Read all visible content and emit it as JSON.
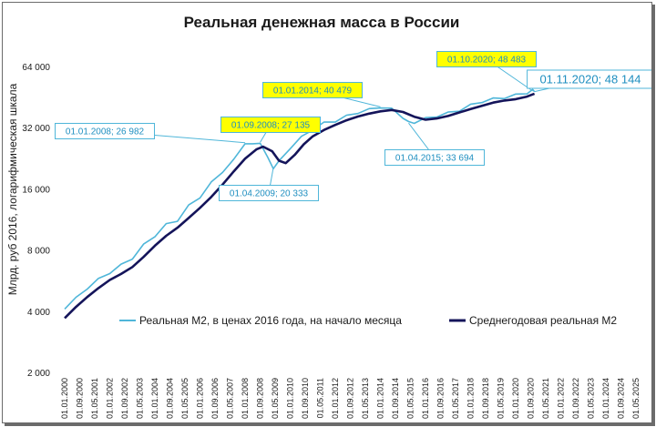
{
  "chart_data": {
    "type": "line",
    "title": "Реальная денежная масса в России",
    "ylabel": "Млрд. руб 2016, логарифмическая шкала",
    "xlabel": "",
    "y_scale": "log2",
    "ylim": [
      2000,
      64000
    ],
    "y_ticks": [
      2000,
      4000,
      8000,
      16000,
      32000,
      64000
    ],
    "y_tick_labels": [
      "2 000",
      "4 000",
      "8 000",
      "16 000",
      "32 000",
      "64 000"
    ],
    "x_tick_labels": [
      "01.01.2000",
      "01.09.2000",
      "01.05.2001",
      "01.01.2002",
      "01.09.2002",
      "01.05.2003",
      "01.01.2004",
      "01.09.2004",
      "01.05.2005",
      "01.01.2006",
      "01.09.2006",
      "01.05.2007",
      "01.01.2008",
      "01.09.2008",
      "01.05.2009",
      "01.01.2010",
      "01.09.2010",
      "01.05.2011",
      "01.01.2012",
      "01.09.2012",
      "01.05.2013",
      "01.01.2014",
      "01.09.2014",
      "01.05.2015",
      "01.01.2016",
      "01.09.2016",
      "01.05.2017",
      "01.01.2018",
      "01.09.2018",
      "01.05.2019",
      "01.01.2020",
      "01.09.2020",
      "01.05.2021",
      "01.01.2022",
      "01.09.2022",
      "01.05.2023",
      "01.01.2024",
      "01.09.2024",
      "01.05.2025"
    ],
    "legend_position": "bottom",
    "grid": false,
    "series": [
      {
        "name": "Реальная М2, в ценах 2016 года, на начало месяца",
        "color": "#4fb6d9",
        "x": [
          2000.0,
          2000.5,
          2001.0,
          2001.5,
          2002.0,
          2002.5,
          2003.0,
          2003.5,
          2004.0,
          2004.5,
          2005.0,
          2005.5,
          2006.0,
          2006.5,
          2007.0,
          2007.5,
          2008.0,
          2008.33,
          2008.67,
          2009.0,
          2009.25,
          2009.5,
          2010.0,
          2010.5,
          2011.0,
          2011.5,
          2012.0,
          2012.5,
          2013.0,
          2013.5,
          2014.0,
          2014.5,
          2015.0,
          2015.25,
          2015.5,
          2016.0,
          2016.5,
          2017.0,
          2017.5,
          2018.0,
          2018.5,
          2019.0,
          2019.5,
          2020.0,
          2020.5,
          2020.75,
          2020.83
        ],
        "y": [
          4100,
          4600,
          5200,
          5700,
          6200,
          6700,
          7300,
          8400,
          9400,
          10600,
          11200,
          13100,
          14600,
          17000,
          19500,
          22000,
          26982,
          26200,
          27135,
          22500,
          20333,
          21600,
          25500,
          28500,
          31500,
          33500,
          34500,
          36200,
          38000,
          39000,
          40479,
          39200,
          36000,
          33694,
          34000,
          35200,
          36500,
          37500,
          39000,
          41000,
          43000,
          44000,
          45000,
          46000,
          47500,
          48483,
          48144
        ]
      },
      {
        "name": "Среднегодовая реальная М2",
        "color": "#14145a",
        "x": [
          2000.0,
          2000.5,
          2001.0,
          2001.5,
          2002.0,
          2002.5,
          2003.0,
          2003.5,
          2004.0,
          2004.5,
          2005.0,
          2005.5,
          2006.0,
          2006.5,
          2007.0,
          2007.5,
          2008.0,
          2008.5,
          2008.8,
          2009.2,
          2009.5,
          2009.8,
          2010.2,
          2010.6,
          2011.0,
          2011.5,
          2012.0,
          2012.5,
          2013.0,
          2013.5,
          2014.0,
          2014.5,
          2015.0,
          2015.5,
          2016.0,
          2016.5,
          2017.0,
          2017.5,
          2018.0,
          2018.5,
          2019.0,
          2019.5,
          2020.0,
          2020.5,
          2020.83
        ],
        "y": [
          3700,
          4200,
          4700,
          5200,
          5700,
          6100,
          6600,
          7400,
          8400,
          9400,
          10300,
          11500,
          12900,
          14600,
          16800,
          19500,
          22500,
          25000,
          25800,
          24500,
          22000,
          21400,
          23500,
          26500,
          29000,
          31200,
          33000,
          34800,
          36300,
          37500,
          38500,
          39100,
          38200,
          36200,
          35000,
          35500,
          36500,
          38000,
          39500,
          41000,
          42500,
          43500,
          44200,
          45500,
          47000
        ]
      }
    ],
    "annotations": [
      {
        "text": "01.01.2008; 26 982",
        "x": 2008.0,
        "y": 26982,
        "box_color": "#ffffff"
      },
      {
        "text": "01.09.2008; 27 135",
        "x": 2008.67,
        "y": 27135,
        "box_color": "#ffff00"
      },
      {
        "text": "01.04.2009; 20 333",
        "x": 2009.25,
        "y": 20333,
        "box_color": "#ffffff"
      },
      {
        "text": "01.01.2014; 40 479",
        "x": 2014.0,
        "y": 40479,
        "box_color": "#ffff00"
      },
      {
        "text": "01.04.2015; 33 694",
        "x": 2015.25,
        "y": 33694,
        "box_color": "#ffffff"
      },
      {
        "text": "01.10.2020; 48 483",
        "x": 2020.75,
        "y": 48483,
        "box_color": "#ffff00"
      },
      {
        "text": "01.11.2020; 48 144",
        "x": 2020.83,
        "y": 48144,
        "box_color": "#ffffff"
      }
    ]
  }
}
